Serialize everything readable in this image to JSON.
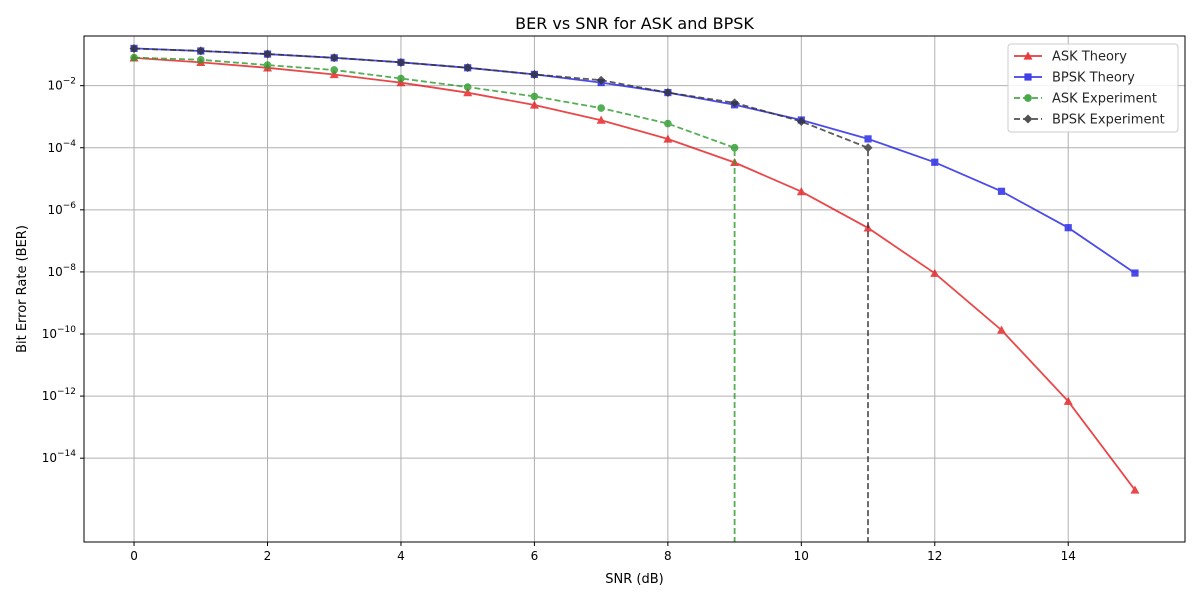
{
  "chart_data": {
    "type": "line",
    "title": "BER vs SNR for ASK and BPSK",
    "xlabel": "SNR (dB)",
    "ylabel": "Bit Error Rate (BER)",
    "xlim": [
      -0.75,
      15.75
    ],
    "ylim_log10": [
      -16.7,
      -0.4
    ],
    "yscale": "log",
    "grid": true,
    "legend_position": "top-right",
    "xticks": [
      0,
      2,
      4,
      6,
      8,
      10,
      12,
      14
    ],
    "yticks": [
      {
        "exp": -2,
        "base": "10",
        "sup": "−2"
      },
      {
        "exp": -4,
        "base": "10",
        "sup": "−4"
      },
      {
        "exp": -6,
        "base": "10",
        "sup": "−6"
      },
      {
        "exp": -8,
        "base": "10",
        "sup": "−8"
      },
      {
        "exp": -10,
        "base": "10",
        "sup": "−10"
      },
      {
        "exp": -12,
        "base": "10",
        "sup": "−12"
      },
      {
        "exp": -14,
        "base": "10",
        "sup": "−14"
      }
    ],
    "series": [
      {
        "name": "ASK Theory",
        "color": "#e41a1c",
        "dash": "solid",
        "marker": "triangle",
        "x": [
          0,
          1,
          2,
          3,
          4,
          5,
          6,
          7,
          8,
          9,
          10,
          11,
          12,
          13,
          14,
          15
        ],
        "y": [
          0.0786,
          0.0563,
          0.0375,
          0.0229,
          0.0125,
          0.00595,
          0.00239,
          0.000773,
          0.000191,
          3.36e-05,
          3.87e-06,
          2.61e-07,
          9.01e-09,
          1.34e-10,
          6.81e-13,
          9.4e-16
        ]
      },
      {
        "name": "BPSK Theory",
        "color": "#1f1fe6",
        "dash": "solid",
        "marker": "square",
        "x": [
          0,
          1,
          2,
          3,
          4,
          5,
          6,
          7,
          8,
          9,
          10,
          11,
          12,
          13,
          14,
          15
        ],
        "y": [
          0.1587,
          0.1309,
          0.104,
          0.0789,
          0.0565,
          0.0377,
          0.023,
          0.0126,
          0.006,
          0.00242,
          0.000783,
          0.000193,
          3.41e-05,
          3.95e-06,
          2.66e-07,
          9.2e-09
        ]
      },
      {
        "name": "ASK Experiment",
        "color": "#2a9a2a",
        "dash": "dashed",
        "marker": "circle",
        "x": [
          0,
          1,
          2,
          3,
          4,
          5,
          6,
          7,
          8,
          9
        ],
        "y": [
          0.08,
          0.068,
          0.046,
          0.032,
          0.017,
          0.009,
          0.0045,
          0.0019,
          0.0006,
          0.0001
        ],
        "drop_to_zero_at": 9
      },
      {
        "name": "BPSK Experiment",
        "color": "#333333",
        "dash": "dashed",
        "marker": "diamond",
        "x": [
          0,
          1,
          2,
          3,
          4,
          5,
          6,
          7,
          8,
          9,
          10,
          11
        ],
        "y": [
          0.156,
          0.132,
          0.105,
          0.079,
          0.056,
          0.038,
          0.023,
          0.015,
          0.006,
          0.0028,
          0.0007,
          0.0001
        ],
        "drop_to_zero_at": 11
      }
    ]
  }
}
